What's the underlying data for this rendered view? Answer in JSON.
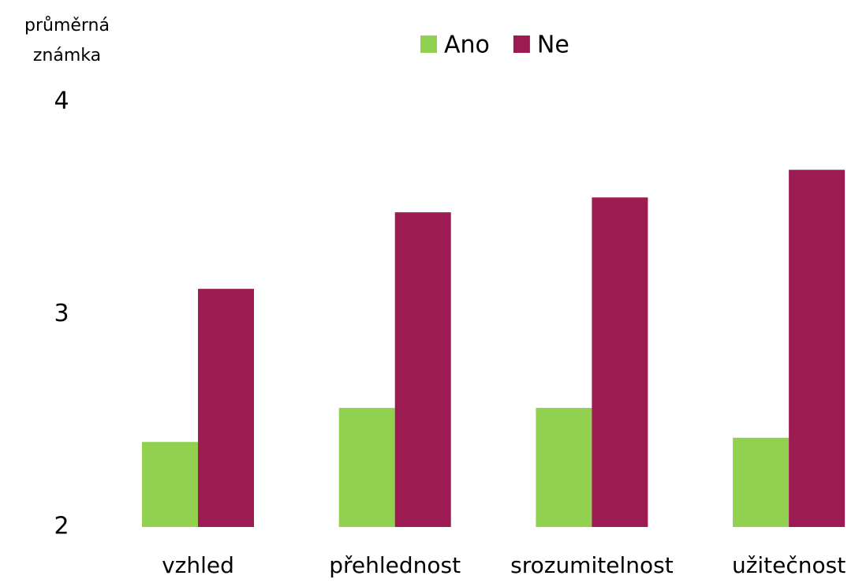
{
  "chart_data": {
    "type": "bar",
    "y_axis_label": "průměrná známka",
    "categories": [
      "vzhled",
      "přehlednost",
      "srozumitelnost",
      "užitečnost"
    ],
    "series": [
      {
        "name": "Ano",
        "color": "#92d050",
        "values": [
          2.4,
          2.56,
          2.56,
          2.42
        ]
      },
      {
        "name": "Ne",
        "color": "#9b1b52",
        "values": [
          3.12,
          3.48,
          3.55,
          3.68
        ]
      }
    ],
    "ylim": [
      2,
      4
    ],
    "yticks": [
      2,
      3,
      4
    ],
    "grid": false,
    "legend": "top"
  }
}
